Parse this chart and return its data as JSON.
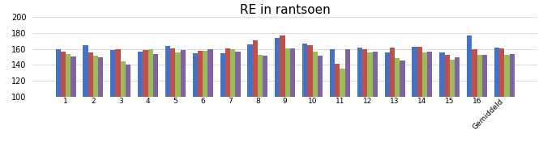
{
  "title": "RE in rantsoen",
  "categories": [
    "1",
    "2",
    "3",
    "4",
    "5",
    "6",
    "7",
    "8",
    "9",
    "10",
    "11",
    "12",
    "13",
    "14",
    "15",
    "16",
    "Gemiddeld"
  ],
  "series": {
    "RE 2019": [
      160,
      165,
      159,
      156,
      164,
      154,
      154,
      166,
      174,
      167,
      160,
      162,
      155,
      163,
      155,
      177,
      162
    ],
    "RE 2020": [
      157,
      155,
      160,
      159,
      161,
      158,
      161,
      171,
      177,
      165,
      141,
      160,
      162,
      163,
      152,
      160,
      161
    ],
    "RE 2021": [
      153,
      151,
      144,
      160,
      155,
      158,
      160,
      152,
      161,
      157,
      135,
      155,
      148,
      155,
      146,
      152,
      152
    ],
    "RE 2022": [
      150,
      149,
      140,
      153,
      159,
      160,
      157,
      151,
      161,
      151,
      160,
      157,
      145,
      157,
      149,
      152,
      153
    ]
  },
  "colors": {
    "RE 2019": "#4472C4",
    "RE 2020": "#C0504D",
    "RE 2021": "#9BBB59",
    "RE 2022": "#8064A2"
  },
  "ylim": [
    100,
    200
  ],
  "yticks": [
    100,
    120,
    140,
    160,
    180,
    200
  ],
  "background_color": "#FFFFFF",
  "bar_width": 0.185,
  "title_fontsize": 11,
  "ybase": 100
}
